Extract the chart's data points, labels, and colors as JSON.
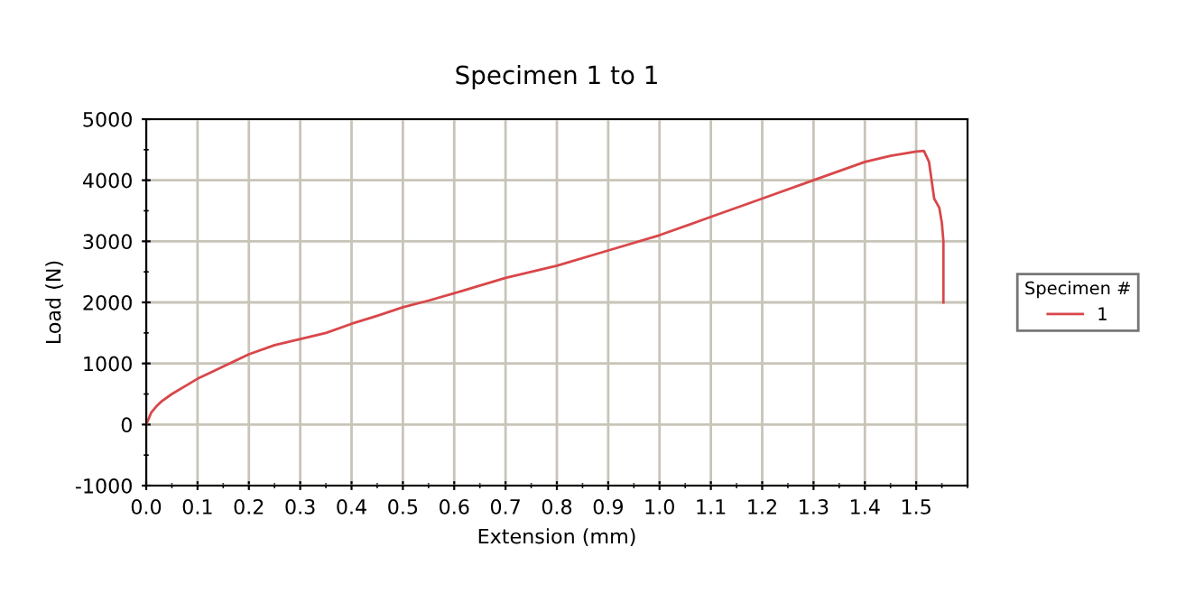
{
  "chart_data": {
    "type": "line",
    "title": "Specimen 1 to 1",
    "xlabel": "Extension (mm)",
    "ylabel": "Load (N)",
    "legend_title": "Specimen #",
    "series": [
      {
        "name": "1",
        "color": "#d9474a",
        "x": [
          0,
          0.01,
          0.02,
          0.03,
          0.05,
          0.08,
          0.1,
          0.13,
          0.15,
          0.2,
          0.25,
          0.3,
          0.35,
          0.4,
          0.45,
          0.5,
          0.55,
          0.6,
          0.7,
          0.8,
          0.9,
          1.0,
          1.1,
          1.2,
          1.3,
          1.4,
          1.45,
          1.5,
          1.515,
          1.525,
          1.53,
          1.535,
          1.545,
          1.55,
          1.553,
          1.553
        ],
        "values": [
          0,
          200,
          300,
          380,
          500,
          650,
          750,
          870,
          950,
          1150,
          1300,
          1400,
          1500,
          1650,
          1780,
          1920,
          2030,
          2150,
          2400,
          2600,
          2850,
          3100,
          3400,
          3700,
          4000,
          4300,
          4400,
          4470,
          4480,
          4300,
          4000,
          3700,
          3550,
          3300,
          3000,
          2000
        ]
      }
    ],
    "xlim": [
      0,
      1.6
    ],
    "xticks": [
      {
        "value": 0,
        "label": "0.0"
      },
      0.1,
      0.2,
      0.3,
      0.4,
      0.5,
      0.6,
      0.7,
      0.8,
      0.9,
      {
        "value": 1,
        "label": "1.0"
      },
      1.1,
      1.2,
      1.3,
      1.4,
      1.5
    ],
    "ylim": [
      -1000,
      5000
    ],
    "yticks": [
      -1000,
      0,
      1000,
      2000,
      3000,
      4000,
      5000
    ],
    "grid": true,
    "legend": "right",
    "line_style": "solid",
    "marker": "none"
  }
}
